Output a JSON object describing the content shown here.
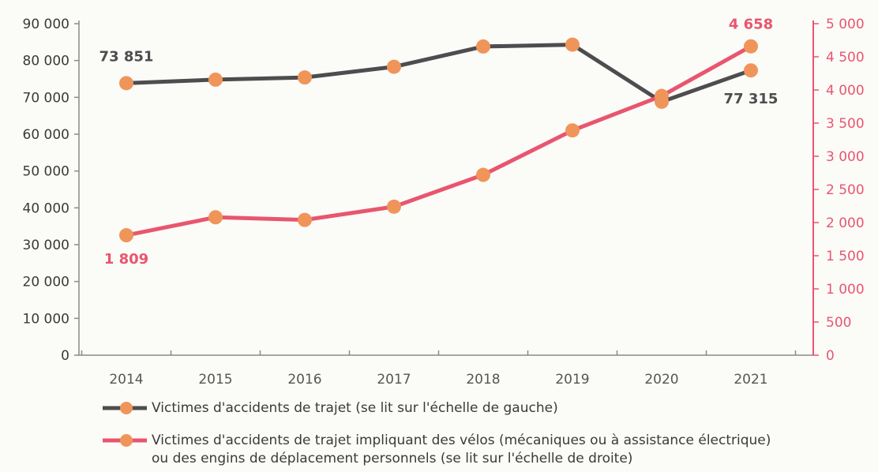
{
  "chart_data": {
    "type": "line",
    "categories": [
      "2014",
      "2015",
      "2016",
      "2017",
      "2018",
      "2019",
      "2020",
      "2021"
    ],
    "left_axis": {
      "min": 0,
      "max": 90000,
      "step": 10000,
      "tick_labels": [
        "0",
        "10 000",
        "20 000",
        "30 000",
        "40 000",
        "50 000",
        "60 000",
        "70 000",
        "80 000",
        "90 000"
      ]
    },
    "right_axis": {
      "min": 0,
      "max": 5000,
      "step": 500,
      "tick_labels": [
        "0",
        "500",
        "1 000",
        "1 500",
        "2 000",
        "2 500",
        "3 000",
        "3 500",
        "4 000",
        "4 500",
        "5 000"
      ]
    },
    "series": [
      {
        "name": "Victimes d'accidents de trajet (se lit sur l'échelle de gauche)",
        "axis": "left",
        "color": "#4d4d4f",
        "values": [
          73851,
          74800,
          75400,
          78300,
          83800,
          84300,
          68800,
          77315
        ]
      },
      {
        "name": "Victimes d'accidents de trajet impliquant des vélos (mécaniques ou à assistance électrique) ou des engins de déplacement personnels (se lit sur l'échelle de droite)",
        "axis": "right",
        "color": "#e8566e",
        "values": [
          1809,
          2080,
          2040,
          2240,
          2720,
          3390,
          3910,
          4658
        ]
      }
    ],
    "marker_color": "#f0955a",
    "grid": false,
    "legend_position": "bottom",
    "annotations": [
      {
        "series": 0,
        "index": 0,
        "text": "73 851",
        "color": "#4d4d4f"
      },
      {
        "series": 0,
        "index": 7,
        "text": "77 315",
        "color": "#4d4d4f"
      },
      {
        "series": 1,
        "index": 0,
        "text": "1 809",
        "color": "#e8566e"
      },
      {
        "series": 1,
        "index": 7,
        "text": "4 658",
        "color": "#e8566e"
      }
    ]
  },
  "legend": [
    {
      "text_lines": [
        "Victimes d'accidents de trajet (se lit sur l'échelle de gauche)"
      ]
    },
    {
      "text_lines": [
        "Victimes d'accidents de trajet impliquant des vélos (mécaniques ou à assistance électrique)",
        "ou des engins de déplacement personnels (se lit sur l'échelle de droite)"
      ]
    }
  ]
}
